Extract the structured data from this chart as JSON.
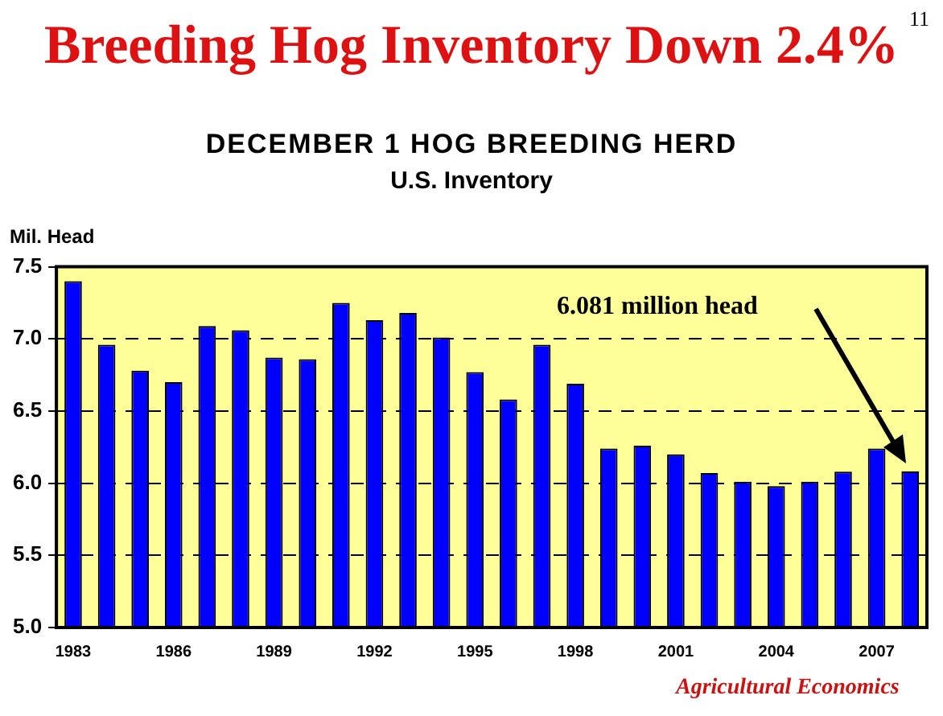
{
  "chart_data": {
    "type": "bar",
    "title": "Breeding Hog Inventory Down 2.4%",
    "subtitle": "DECEMBER 1 HOG BREEDING HERD",
    "ylabel": "Mil. Head",
    "annotations": [
      "U.S. Inventory",
      "6.081 million head",
      "11",
      "Agricultural Economics"
    ],
    "categories": [
      "1983",
      null,
      null,
      "1986",
      null,
      null,
      "1989",
      null,
      null,
      "1992",
      null,
      null,
      "1995",
      null,
      null,
      "1998",
      null,
      null,
      "2001",
      null,
      null,
      "2004",
      null,
      null,
      "2007",
      null
    ],
    "values": [
      7.4,
      6.96,
      6.78,
      6.7,
      7.09,
      7.06,
      6.87,
      6.86,
      7.25,
      7.13,
      7.18,
      7.01,
      6.77,
      6.58,
      6.96,
      6.69,
      6.24,
      6.26,
      6.2,
      6.07,
      6.01,
      5.98,
      6.01,
      6.08,
      6.24,
      6.081
    ],
    "color": "#0000ff",
    "ylim": [
      5,
      7.5
    ],
    "yticks": [
      {
        "value": 5,
        "label": "5.0"
      },
      {
        "value": 5.5,
        "label": "5.5"
      },
      {
        "value": 6,
        "label": "6.0"
      },
      {
        "value": 6.5,
        "label": "6.5"
      },
      {
        "value": 7,
        "label": "7.0"
      },
      {
        "value": 7.5,
        "label": "7.5"
      }
    ],
    "grid": "y"
  }
}
